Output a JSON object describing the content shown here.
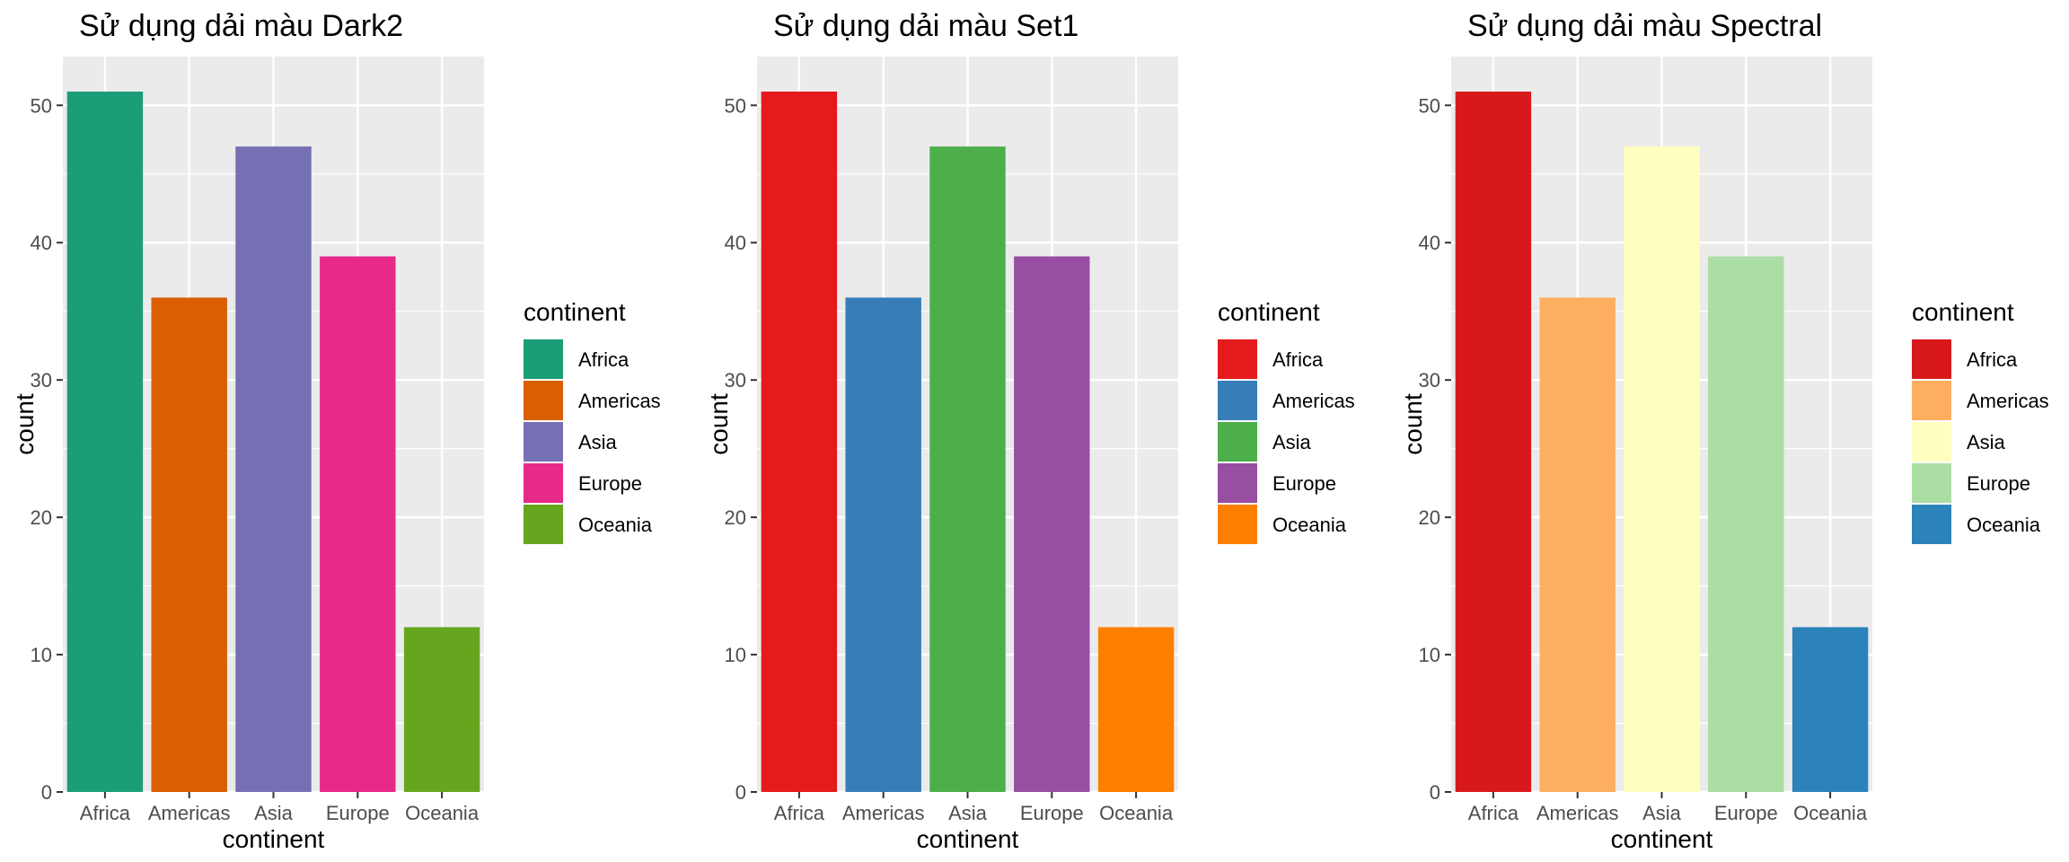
{
  "charts": [
    {
      "palette": "Dark2",
      "chart_data": {
        "type": "bar",
        "title": "Sử dụng dải màu Dark2",
        "xlabel": "continent",
        "ylabel": "count",
        "categories": [
          "Africa",
          "Americas",
          "Asia",
          "Europe",
          "Oceania"
        ],
        "values": [
          51,
          36,
          47,
          39,
          12
        ],
        "colors": [
          "#1B9E77",
          "#D95F02",
          "#7570B3",
          "#E7298A",
          "#66A61E"
        ],
        "ylim": [
          0,
          53.55
        ],
        "yticks": [
          0,
          10,
          20,
          30,
          40,
          50
        ],
        "grid": true,
        "legend": {
          "title": "continent",
          "position": "right",
          "entries": [
            "Africa",
            "Americas",
            "Asia",
            "Europe",
            "Oceania"
          ]
        }
      }
    },
    {
      "palette": "Set1",
      "chart_data": {
        "type": "bar",
        "title": "Sử dụng dải màu Set1",
        "xlabel": "continent",
        "ylabel": "count",
        "categories": [
          "Africa",
          "Americas",
          "Asia",
          "Europe",
          "Oceania"
        ],
        "values": [
          51,
          36,
          47,
          39,
          12
        ],
        "colors": [
          "#E41A1C",
          "#377EB8",
          "#4DAF4A",
          "#984EA3",
          "#FF7F00"
        ],
        "ylim": [
          0,
          53.55
        ],
        "yticks": [
          0,
          10,
          20,
          30,
          40,
          50
        ],
        "grid": true,
        "legend": {
          "title": "continent",
          "position": "right",
          "entries": [
            "Africa",
            "Americas",
            "Asia",
            "Europe",
            "Oceania"
          ]
        }
      }
    },
    {
      "palette": "Spectral",
      "chart_data": {
        "type": "bar",
        "title": "Sử dụng dải màu Spectral",
        "xlabel": "continent",
        "ylabel": "count",
        "categories": [
          "Africa",
          "Americas",
          "Asia",
          "Europe",
          "Oceania"
        ],
        "values": [
          51,
          36,
          47,
          39,
          12
        ],
        "colors": [
          "#D7191C",
          "#FDAE61",
          "#FFFFBF",
          "#ABDDA4",
          "#2B83BA"
        ],
        "ylim": [
          0,
          53.55
        ],
        "yticks": [
          0,
          10,
          20,
          30,
          40,
          50
        ],
        "grid": true,
        "legend": {
          "title": "continent",
          "position": "right",
          "entries": [
            "Africa",
            "Americas",
            "Asia",
            "Europe",
            "Oceania"
          ]
        }
      }
    }
  ],
  "chart_data": [
    {
      "type": "bar",
      "title": "Sử dụng dải màu Dark2",
      "xlabel": "continent",
      "ylabel": "count",
      "categories": [
        "Africa",
        "Americas",
        "Asia",
        "Europe",
        "Oceania"
      ],
      "values": [
        51,
        36,
        47,
        39,
        12
      ],
      "ylim": [
        0,
        53.55
      ],
      "grid": true,
      "legend": "right"
    },
    {
      "type": "bar",
      "title": "Sử dụng dải màu Set1",
      "xlabel": "continent",
      "ylabel": "count",
      "categories": [
        "Africa",
        "Americas",
        "Asia",
        "Europe",
        "Oceania"
      ],
      "values": [
        51,
        36,
        47,
        39,
        12
      ],
      "ylim": [
        0,
        53.55
      ],
      "grid": true,
      "legend": "right"
    },
    {
      "type": "bar",
      "title": "Sử dụng dải màu Spectral",
      "xlabel": "continent",
      "ylabel": "count",
      "categories": [
        "Africa",
        "Americas",
        "Asia",
        "Europe",
        "Oceania"
      ],
      "values": [
        51,
        36,
        47,
        39,
        12
      ],
      "ylim": [
        0,
        53.55
      ],
      "grid": true,
      "legend": "right"
    }
  ],
  "theme": {
    "panel_bg": "#EBEBEB",
    "grid_color": "#FFFFFF",
    "tick_color": "#333333"
  }
}
